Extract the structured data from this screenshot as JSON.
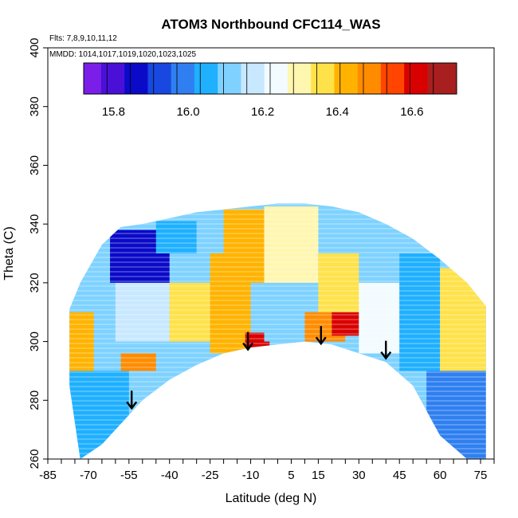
{
  "chart_data": {
    "type": "heatmap",
    "title": "ATOM3 Northbound CFC114_WAS",
    "xlabel": "Latitude (deg N)",
    "ylabel": "Theta (C)",
    "xlim": [
      -85,
      80
    ],
    "ylim": [
      260,
      400
    ],
    "x_ticks": [
      -85,
      -70,
      -55,
      -40,
      -25,
      -10,
      5,
      15,
      30,
      45,
      60,
      75
    ],
    "y_ticks": [
      260,
      280,
      300,
      320,
      340,
      360,
      380,
      400
    ],
    "notes": [
      "Flts: 7,8,9,10,11,12",
      "MMDD: 1014,1017,1019,1020,1023,1025"
    ],
    "colorbar": {
      "range": [
        15.72,
        16.72
      ],
      "ticks": [
        15.8,
        16.0,
        16.2,
        16.4,
        16.6
      ],
      "colors": [
        "#7a1ee8",
        "#4a10d8",
        "#0a0ac8",
        "#1848e0",
        "#2f7ff0",
        "#1fb0ff",
        "#7fd2ff",
        "#c8e8ff",
        "#f2fbff",
        "#fff6b0",
        "#ffe24a",
        "#ffb300",
        "#ff8c00",
        "#ff4500",
        "#d90000",
        "#a81f1f"
      ]
    },
    "coverage_bounds": [
      {
        "lat": -77,
        "theta_min": 285,
        "theta_max": 311
      },
      {
        "lat": -73,
        "theta_min": 260,
        "theta_max": 320
      },
      {
        "lat": -65,
        "theta_min": 265,
        "theta_max": 333
      },
      {
        "lat": -58,
        "theta_min": 272,
        "theta_max": 339
      },
      {
        "lat": -50,
        "theta_min": 280,
        "theta_max": 340
      },
      {
        "lat": -40,
        "theta_min": 287,
        "theta_max": 342
      },
      {
        "lat": -30,
        "theta_min": 292,
        "theta_max": 344
      },
      {
        "lat": -20,
        "theta_min": 296,
        "theta_max": 345
      },
      {
        "lat": -10,
        "theta_min": 298,
        "theta_max": 346
      },
      {
        "lat": 0,
        "theta_min": 299,
        "theta_max": 347
      },
      {
        "lat": 10,
        "theta_min": 300,
        "theta_max": 347
      },
      {
        "lat": 20,
        "theta_min": 299,
        "theta_max": 346
      },
      {
        "lat": 30,
        "theta_min": 296,
        "theta_max": 344
      },
      {
        "lat": 40,
        "theta_min": 293,
        "theta_max": 340
      },
      {
        "lat": 50,
        "theta_min": 285,
        "theta_max": 335
      },
      {
        "lat": 60,
        "theta_min": 268,
        "theta_max": 328
      },
      {
        "lat": 70,
        "theta_min": 260,
        "theta_max": 320
      },
      {
        "lat": 77,
        "theta_min": 260,
        "theta_max": 312
      }
    ],
    "regions": [
      {
        "lat": [
          -77,
          -65
        ],
        "theta": [
          260,
          290
        ],
        "value": 16.05
      },
      {
        "lat": [
          -77,
          -68
        ],
        "theta": [
          290,
          310
        ],
        "value": 16.45
      },
      {
        "lat": [
          -66,
          -55
        ],
        "theta": [
          265,
          290
        ],
        "value": 16.05
      },
      {
        "lat": [
          -66,
          -52
        ],
        "theta": [
          290,
          300
        ],
        "value": 16.1
      },
      {
        "lat": [
          -58,
          -45
        ],
        "theta": [
          290,
          296
        ],
        "value": 16.5
      },
      {
        "lat": [
          -60,
          -40
        ],
        "theta": [
          300,
          320
        ],
        "value": 16.2
      },
      {
        "lat": [
          -62,
          -40
        ],
        "theta": [
          320,
          338
        ],
        "value": 15.9
      },
      {
        "lat": [
          -45,
          -30
        ],
        "theta": [
          330,
          341
        ],
        "value": 16.05
      },
      {
        "lat": [
          -40,
          -25
        ],
        "theta": [
          300,
          320
        ],
        "value": 16.35
      },
      {
        "lat": [
          -25,
          -10
        ],
        "theta": [
          296,
          330
        ],
        "value": 16.45
      },
      {
        "lat": [
          -20,
          -5
        ],
        "theta": [
          320,
          345
        ],
        "value": 16.45
      },
      {
        "lat": [
          -12,
          -3
        ],
        "theta": [
          298,
          303
        ],
        "value": 16.6
      },
      {
        "lat": [
          -5,
          10
        ],
        "theta": [
          300,
          320
        ],
        "value": 16.1
      },
      {
        "lat": [
          -5,
          15
        ],
        "theta": [
          320,
          346
        ],
        "value": 16.3
      },
      {
        "lat": [
          10,
          25
        ],
        "theta": [
          300,
          310
        ],
        "value": 16.5
      },
      {
        "lat": [
          20,
          32
        ],
        "theta": [
          302,
          310
        ],
        "value": 16.65
      },
      {
        "lat": [
          15,
          35
        ],
        "theta": [
          310,
          330
        ],
        "value": 16.35
      },
      {
        "lat": [
          30,
          45
        ],
        "theta": [
          296,
          320
        ],
        "value": 16.25
      },
      {
        "lat": [
          30,
          50
        ],
        "theta": [
          320,
          340
        ],
        "value": 16.1
      },
      {
        "lat": [
          45,
          60
        ],
        "theta": [
          290,
          330
        ],
        "value": 16.05
      },
      {
        "lat": [
          60,
          77
        ],
        "theta": [
          290,
          325
        ],
        "value": 16.35
      },
      {
        "lat": [
          55,
          77
        ],
        "theta": [
          260,
          290
        ],
        "value": 16.0
      }
    ],
    "arrows": [
      {
        "lat": -54,
        "theta": 280
      },
      {
        "lat": -11,
        "theta": 300
      },
      {
        "lat": 16,
        "theta": 302
      },
      {
        "lat": 40,
        "theta": 297
      }
    ]
  }
}
